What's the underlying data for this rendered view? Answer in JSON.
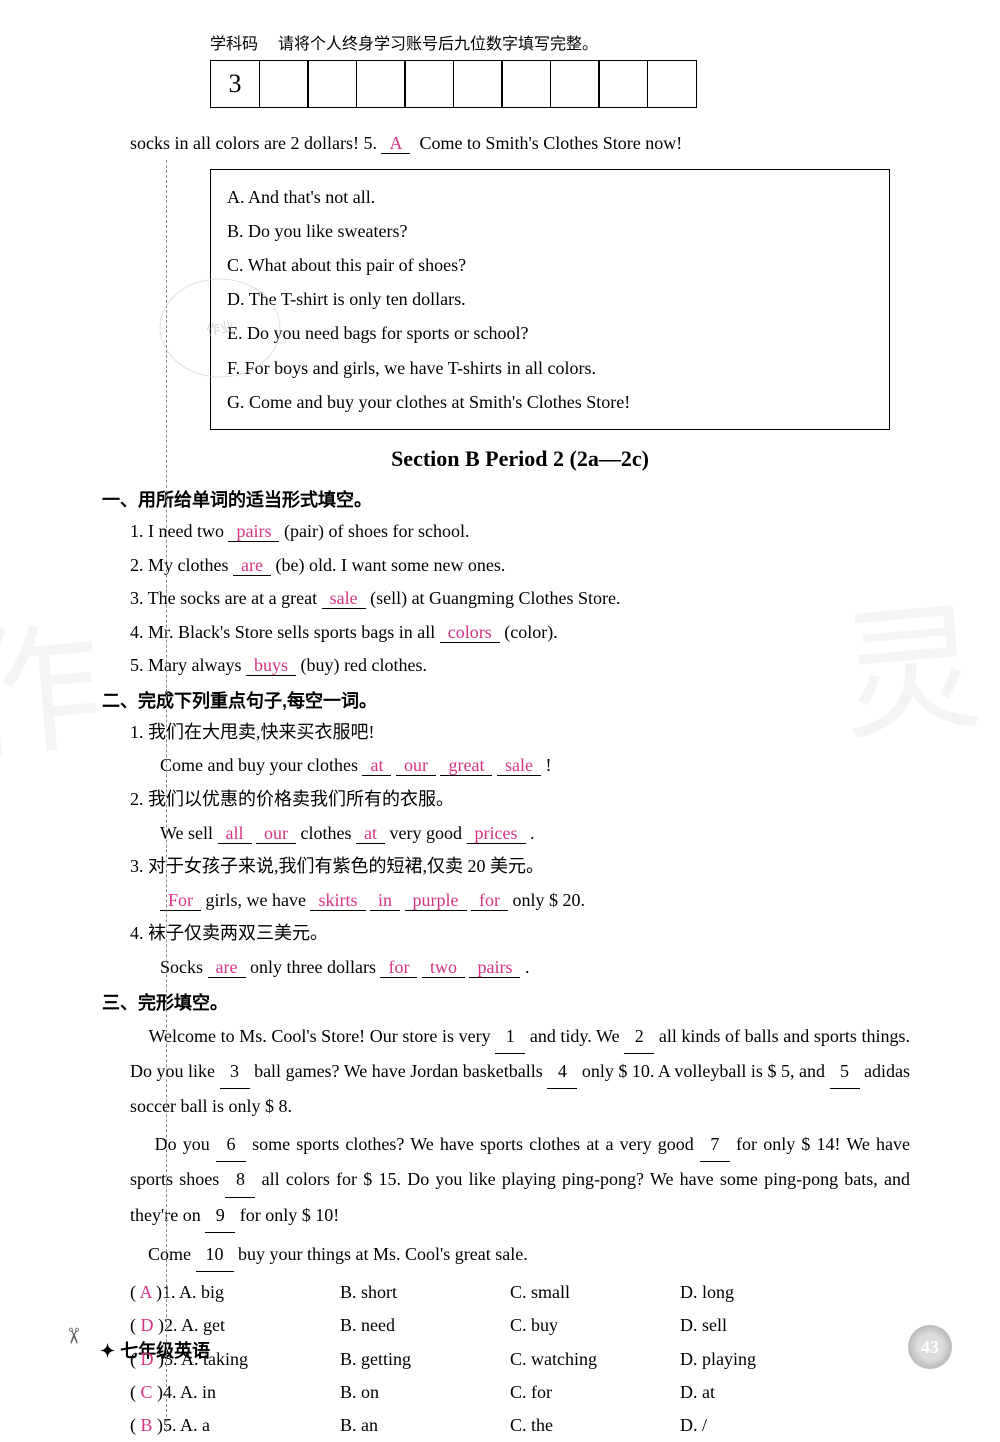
{
  "header": {
    "subject_label": "学科码",
    "instruction": "请将个人终身学习账号后九位数字填写完整。",
    "fixed_digit": "3"
  },
  "top_line": {
    "prefix": "socks in all colors are 2 dollars! 5.",
    "answer": "A",
    "suffix": "Come to Smith's Clothes Store now!"
  },
  "options_box": {
    "A": "And that's not all.",
    "B": "Do you like sweaters?",
    "C": "What about this pair of shoes?",
    "D": "The T-shirt is only ten dollars.",
    "E": "Do you need bags for sports or school?",
    "F": "For boys and girls, we have T-shirts in all colors.",
    "G": "Come and buy your clothes at Smith's Clothes Store!"
  },
  "section_title": "Section B  Period 2 (2a—2c)",
  "part1": {
    "heading": "一、用所给单词的适当形式填空。",
    "q1": {
      "pre": "1. I need two ",
      "ans": "pairs",
      "hint": "(pair)",
      "post": " of shoes for school."
    },
    "q2": {
      "pre": "2. My clothes ",
      "ans": "are",
      "hint": "(be)",
      "post": " old. I want some new ones."
    },
    "q3": {
      "pre": "3. The socks are at a great ",
      "ans": "sale",
      "hint": "(sell)",
      "post": " at Guangming Clothes Store."
    },
    "q4": {
      "pre": "4. Mr. Black's Store sells sports bags in all ",
      "ans": "colors",
      "hint": "(color)."
    },
    "q5": {
      "pre": "5. Mary always ",
      "ans": "buys",
      "hint": "(buy)",
      "post": " red clothes."
    }
  },
  "part2": {
    "heading": "二、完成下列重点句子,每空一词。",
    "q1": {
      "cn": "1. 我们在大甩卖,快来买衣服吧!",
      "en_pre": "Come and buy your clothes ",
      "a1": "at",
      "a2": "our",
      "a3": "great",
      "a4": "sale",
      "punct": " !"
    },
    "q2": {
      "cn": "2. 我们以优惠的价格卖我们所有的衣服。",
      "pre": "We sell ",
      "a1": "all",
      "a2": "our",
      "mid1": " clothes ",
      "a3": "at",
      "mid2": " very good ",
      "a4": "prices",
      "punct": " ."
    },
    "q3": {
      "cn": "3. 对于女孩子来说,我们有紫色的短裙,仅卖 20 美元。",
      "a1": "For",
      "mid1": " girls, we have ",
      "a2": "skirts",
      "a3": "in",
      "a4": "purple",
      "a5": "for",
      "post": " only $ 20."
    },
    "q4": {
      "cn": "4. 袜子仅卖两双三美元。",
      "pre": "Socks ",
      "a1": "are",
      "mid1": " only three dollars ",
      "a2": "for",
      "a3": "two",
      "a4": "pairs",
      "punct": " ."
    }
  },
  "part3": {
    "heading": "三、完形填空。",
    "para1": "Welcome to Ms. Cool's Store! Our store is very ",
    "b1": "1",
    "p1a": " and tidy. We ",
    "b2": "2",
    "p2": " all kinds of balls and sports things. Do you like ",
    "b3": "3",
    "p3": " ball games? We have Jordan basketballs ",
    "b4": "4",
    "p4": " only $ 10. A volleyball is $ 5, and ",
    "b5": "5",
    "p5": " adidas soccer ball is only $ 8.",
    "para2a": "Do you ",
    "b6": "6",
    "p6": " some sports clothes? We have sports clothes at a very good ",
    "b7": "7",
    "p7": " for only $ 14! We have sports shoes ",
    "b8": "8",
    "p8": " all colors for $ 15. Do you like playing ping-pong? We have some ping-pong bats, and they're on ",
    "b9": "9",
    "p9": " for only $ 10!",
    "para3a": "Come ",
    "b10": "10",
    "p10": " buy your things at Ms. Cool's great sale.",
    "choices": [
      {
        "ans": "A",
        "n": "1",
        "A": "big",
        "B": "short",
        "C": "small",
        "D": "long"
      },
      {
        "ans": "D",
        "n": "2",
        "A": "get",
        "B": "need",
        "C": "buy",
        "D": "sell"
      },
      {
        "ans": "D",
        "n": "3",
        "A": "taking",
        "B": "getting",
        "C": "watching",
        "D": "playing"
      },
      {
        "ans": "C",
        "n": "4",
        "A": "in",
        "B": "on",
        "C": "for",
        "D": "at"
      },
      {
        "ans": "B",
        "n": "5",
        "A": "a",
        "B": "an",
        "C": "the",
        "D": "/"
      }
    ]
  },
  "footer": {
    "text": "七年级英语",
    "page": "43"
  },
  "stamp_text": "作业",
  "colors": {
    "answer": "#d63384",
    "text": "#000000",
    "border": "#000000",
    "dash": "#888888"
  }
}
